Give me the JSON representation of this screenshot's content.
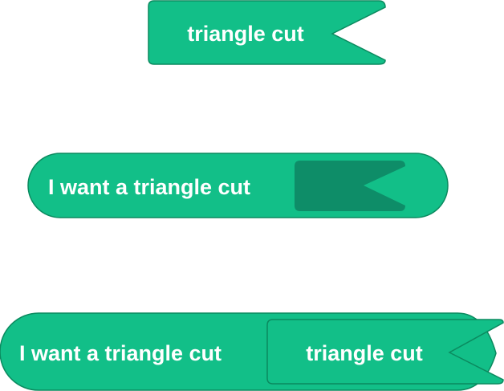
{
  "colors": {
    "block_fill": "#12bf88",
    "block_stroke": "#0b8a5f",
    "slot_fill": "#0e8d68",
    "label": "#ffffff",
    "background": "#ffffff"
  },
  "blocks": {
    "standalone": {
      "label": "triangle cut",
      "icon": "triangle-notch-tab"
    },
    "reporter_empty": {
      "label": "I want a triangle cut",
      "slot_icon": "empty-triangle-notch-slot"
    },
    "reporter_filled": {
      "label": "I want a triangle cut",
      "inner_label": "triangle cut",
      "icon": "triangle-notch-tab"
    }
  }
}
